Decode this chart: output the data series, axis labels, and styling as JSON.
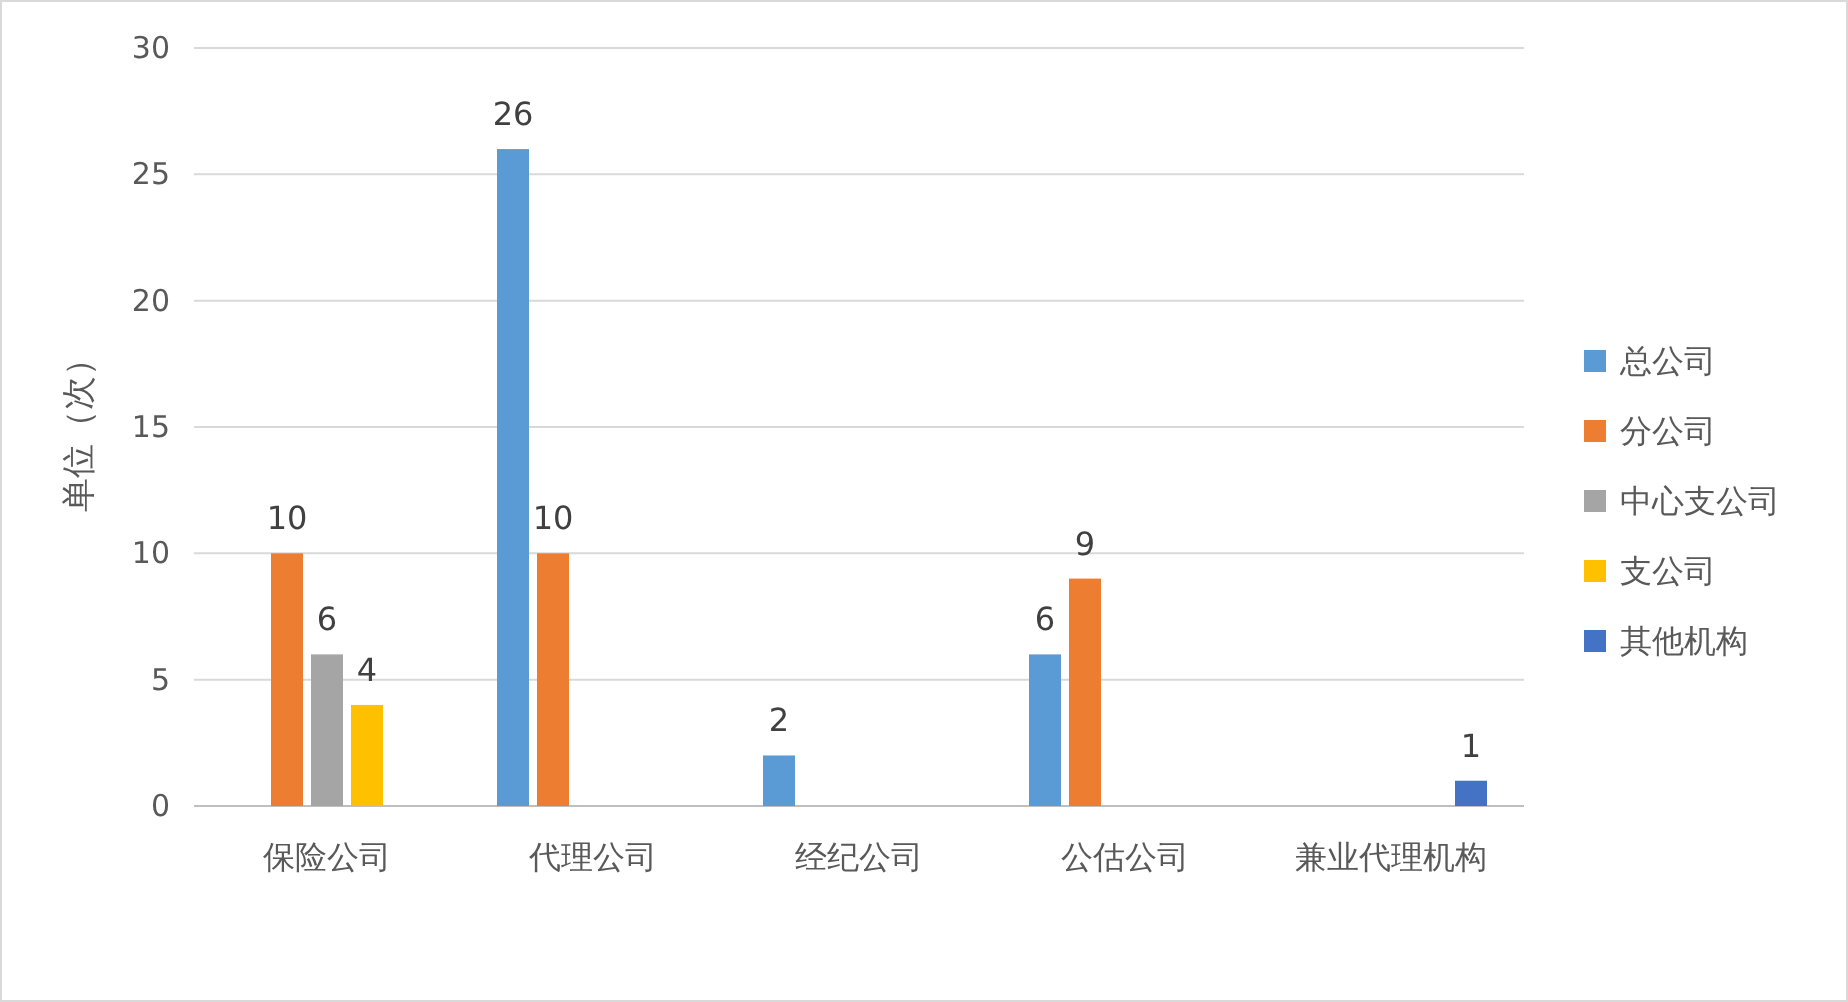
{
  "chart_data": {
    "type": "bar",
    "ylabel": "单位（次）",
    "categories": [
      "保险公司",
      "代理公司",
      "经纪公司",
      "公估公司",
      "兼业代理机构"
    ],
    "series": [
      {
        "name": "总公司",
        "color": "#5b9bd5",
        "values": [
          null,
          26,
          2,
          6,
          null
        ]
      },
      {
        "name": "分公司",
        "color": "#ed7d31",
        "values": [
          10,
          10,
          null,
          9,
          null
        ]
      },
      {
        "name": "中心支公司",
        "color": "#a5a5a5",
        "values": [
          6,
          null,
          null,
          null,
          null
        ]
      },
      {
        "name": "支公司",
        "color": "#ffc000",
        "values": [
          4,
          null,
          null,
          null,
          null
        ]
      },
      {
        "name": "其他机构",
        "color": "#4472c4",
        "values": [
          null,
          null,
          null,
          null,
          1
        ]
      }
    ],
    "ylim": [
      0,
      30
    ],
    "yticks": [
      0,
      5,
      10,
      15,
      20,
      25,
      30
    ],
    "grid": "y",
    "legend": "right",
    "data_labels": true
  }
}
